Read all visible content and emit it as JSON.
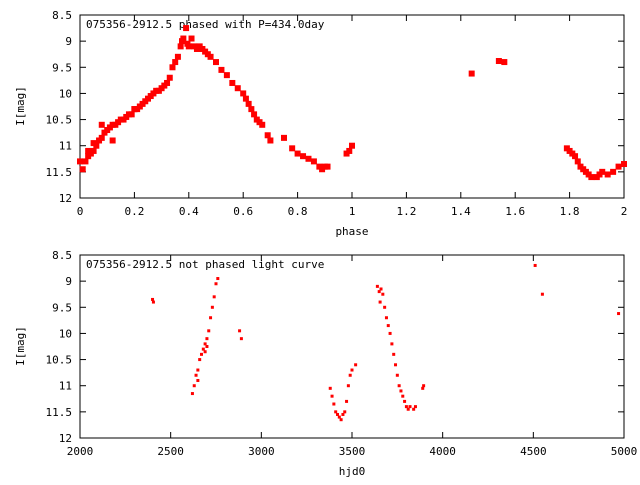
{
  "chart_data": [
    {
      "type": "scatter",
      "title": "075356-2912.5 phased with P=434.0day",
      "xlabel": "phase",
      "ylabel": "I[mag]",
      "xlim": [
        0,
        2
      ],
      "ylim": [
        8.5,
        12
      ],
      "y_inverted": true,
      "grid": false,
      "legend": "none",
      "marker_color": "#ff0000",
      "marker_size": "large",
      "xticks": [
        0,
        0.2,
        0.4,
        0.6,
        0.8,
        1,
        1.2,
        1.4,
        1.6,
        1.8,
        2
      ],
      "xtick_labels": [
        "0",
        "0.2",
        "0.4",
        "0.6",
        "0.8",
        "1",
        "1.2",
        "1.4",
        "1.6",
        "1.8",
        "2"
      ],
      "yticks": [
        8.5,
        9,
        9.5,
        10,
        10.5,
        11,
        11.5,
        12
      ],
      "ytick_labels": [
        "8.5",
        "9",
        "9.5",
        "10",
        "10.5",
        "11",
        "11.5",
        "12"
      ],
      "points": [
        [
          0.0,
          11.3
        ],
        [
          0.01,
          11.45
        ],
        [
          0.02,
          11.3
        ],
        [
          0.03,
          11.2
        ],
        [
          0.04,
          11.15
        ],
        [
          0.05,
          11.1
        ],
        [
          0.06,
          11.0
        ],
        [
          0.07,
          10.9
        ],
        [
          0.08,
          10.85
        ],
        [
          0.09,
          10.75
        ],
        [
          0.1,
          10.7
        ],
        [
          0.11,
          10.65
        ],
        [
          0.12,
          10.6
        ],
        [
          0.13,
          10.6
        ],
        [
          0.14,
          10.55
        ],
        [
          0.15,
          10.5
        ],
        [
          0.16,
          10.5
        ],
        [
          0.17,
          10.45
        ],
        [
          0.18,
          10.4
        ],
        [
          0.19,
          10.4
        ],
        [
          0.2,
          10.3
        ],
        [
          0.21,
          10.3
        ],
        [
          0.22,
          10.25
        ],
        [
          0.23,
          10.2
        ],
        [
          0.24,
          10.15
        ],
        [
          0.25,
          10.1
        ],
        [
          0.26,
          10.05
        ],
        [
          0.27,
          10.0
        ],
        [
          0.28,
          9.95
        ],
        [
          0.29,
          9.95
        ],
        [
          0.3,
          9.9
        ],
        [
          0.31,
          9.85
        ],
        [
          0.32,
          9.8
        ],
        [
          0.33,
          9.7
        ],
        [
          0.34,
          9.5
        ],
        [
          0.35,
          9.4
        ],
        [
          0.36,
          9.3
        ],
        [
          0.37,
          9.1
        ],
        [
          0.375,
          9.0
        ],
        [
          0.38,
          8.95
        ],
        [
          0.39,
          8.75
        ],
        [
          0.395,
          9.05
        ],
        [
          0.4,
          9.1
        ],
        [
          0.41,
          8.95
        ],
        [
          0.42,
          9.1
        ],
        [
          0.43,
          9.15
        ],
        [
          0.44,
          9.1
        ],
        [
          0.45,
          9.15
        ],
        [
          0.46,
          9.2
        ],
        [
          0.47,
          9.25
        ],
        [
          0.48,
          9.3
        ],
        [
          0.5,
          9.4
        ],
        [
          0.52,
          9.55
        ],
        [
          0.54,
          9.65
        ],
        [
          0.56,
          9.8
        ],
        [
          0.58,
          9.9
        ],
        [
          0.6,
          10.0
        ],
        [
          0.61,
          10.1
        ],
        [
          0.62,
          10.2
        ],
        [
          0.63,
          10.3
        ],
        [
          0.64,
          10.4
        ],
        [
          0.65,
          10.5
        ],
        [
          0.66,
          10.55
        ],
        [
          0.67,
          10.6
        ],
        [
          0.69,
          10.8
        ],
        [
          0.7,
          10.9
        ],
        [
          0.75,
          10.85
        ],
        [
          0.78,
          11.05
        ],
        [
          0.8,
          11.15
        ],
        [
          0.82,
          11.2
        ],
        [
          0.84,
          11.25
        ],
        [
          0.86,
          11.3
        ],
        [
          0.88,
          11.4
        ],
        [
          0.89,
          11.45
        ],
        [
          0.9,
          11.4
        ],
        [
          0.91,
          11.4
        ],
        [
          0.03,
          11.1
        ],
        [
          0.05,
          10.95
        ],
        [
          0.08,
          10.6
        ],
        [
          0.12,
          10.9
        ],
        [
          0.2,
          10.3
        ],
        [
          0.98,
          11.15
        ],
        [
          0.99,
          11.1
        ],
        [
          1.0,
          11.0
        ],
        [
          1.44,
          9.62
        ],
        [
          1.54,
          9.38
        ],
        [
          1.56,
          9.4
        ],
        [
          1.79,
          11.05
        ],
        [
          1.8,
          11.1
        ],
        [
          1.81,
          11.15
        ],
        [
          1.82,
          11.2
        ],
        [
          1.83,
          11.3
        ],
        [
          1.84,
          11.4
        ],
        [
          1.85,
          11.45
        ],
        [
          1.86,
          11.5
        ],
        [
          1.87,
          11.55
        ],
        [
          1.88,
          11.6
        ],
        [
          1.9,
          11.6
        ],
        [
          1.91,
          11.55
        ],
        [
          1.92,
          11.5
        ],
        [
          1.94,
          11.55
        ],
        [
          1.96,
          11.5
        ],
        [
          1.98,
          11.4
        ],
        [
          2.0,
          11.35
        ]
      ]
    },
    {
      "type": "scatter",
      "title": "075356-2912.5 not phased light curve",
      "xlabel": "hjd0",
      "ylabel": "I[mag]",
      "xlim": [
        2000,
        5000
      ],
      "ylim": [
        8.5,
        12
      ],
      "y_inverted": true,
      "grid": false,
      "legend": "none",
      "marker_color": "#ff0000",
      "marker_size": "small",
      "xticks": [
        2000,
        2500,
        3000,
        3500,
        4000,
        4500,
        5000
      ],
      "xtick_labels": [
        "2000",
        "2500",
        "3000",
        "3500",
        "4000",
        "4500",
        "5000"
      ],
      "yticks": [
        8.5,
        9,
        9.5,
        10,
        10.5,
        11,
        11.5,
        12
      ],
      "ytick_labels": [
        "8.5",
        "9",
        "9.5",
        "10",
        "10.5",
        "11",
        "11.5",
        "12"
      ],
      "points": [
        [
          2400,
          9.35
        ],
        [
          2405,
          9.4
        ],
        [
          2620,
          11.15
        ],
        [
          2630,
          11.0
        ],
        [
          2640,
          10.8
        ],
        [
          2650,
          10.7
        ],
        [
          2660,
          10.5
        ],
        [
          2670,
          10.4
        ],
        [
          2680,
          10.3
        ],
        [
          2690,
          10.2
        ],
        [
          2700,
          10.1
        ],
        [
          2710,
          9.95
        ],
        [
          2720,
          9.7
        ],
        [
          2730,
          9.5
        ],
        [
          2740,
          9.3
        ],
        [
          2750,
          9.05
        ],
        [
          2760,
          8.95
        ],
        [
          2650,
          10.9
        ],
        [
          2690,
          10.35
        ],
        [
          2700,
          10.25
        ],
        [
          2880,
          9.95
        ],
        [
          2890,
          10.1
        ],
        [
          3380,
          11.05
        ],
        [
          3390,
          11.2
        ],
        [
          3400,
          11.35
        ],
        [
          3410,
          11.5
        ],
        [
          3420,
          11.55
        ],
        [
          3430,
          11.6
        ],
        [
          3440,
          11.65
        ],
        [
          3450,
          11.55
        ],
        [
          3460,
          11.5
        ],
        [
          3470,
          11.3
        ],
        [
          3480,
          11.0
        ],
        [
          3490,
          10.8
        ],
        [
          3500,
          10.7
        ],
        [
          3520,
          10.6
        ],
        [
          3640,
          9.1
        ],
        [
          3650,
          9.2
        ],
        [
          3655,
          9.4
        ],
        [
          3660,
          9.15
        ],
        [
          3670,
          9.25
        ],
        [
          3680,
          9.5
        ],
        [
          3690,
          9.7
        ],
        [
          3700,
          9.85
        ],
        [
          3710,
          10.0
        ],
        [
          3720,
          10.2
        ],
        [
          3730,
          10.4
        ],
        [
          3740,
          10.6
        ],
        [
          3750,
          10.8
        ],
        [
          3760,
          11.0
        ],
        [
          3770,
          11.1
        ],
        [
          3780,
          11.2
        ],
        [
          3790,
          11.3
        ],
        [
          3800,
          11.4
        ],
        [
          3810,
          11.45
        ],
        [
          3820,
          11.4
        ],
        [
          3840,
          11.45
        ],
        [
          3850,
          11.4
        ],
        [
          3890,
          11.05
        ],
        [
          3895,
          11.0
        ],
        [
          4510,
          8.7
        ],
        [
          4550,
          9.25
        ],
        [
          4970,
          9.62
        ]
      ]
    }
  ]
}
